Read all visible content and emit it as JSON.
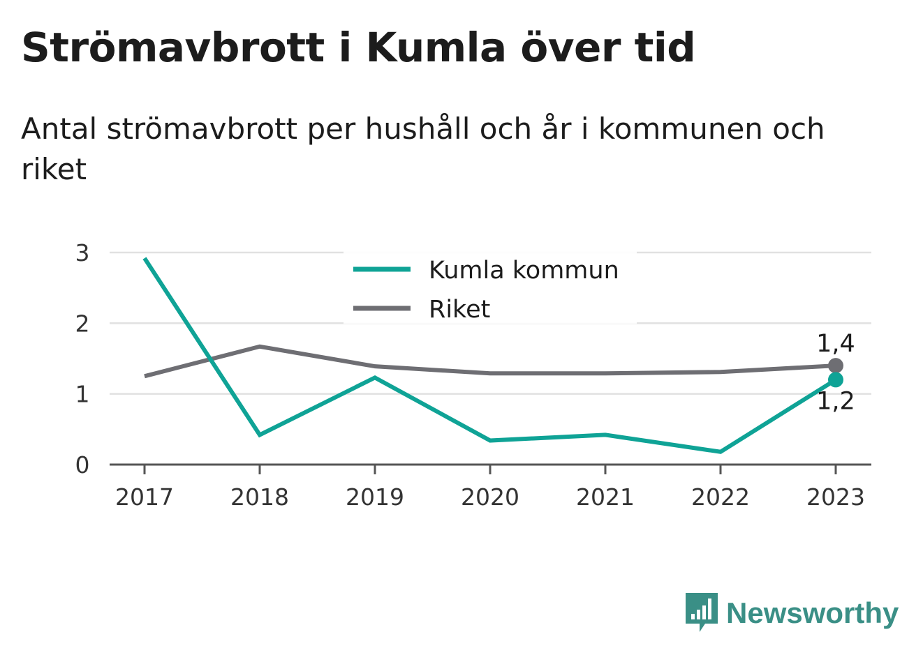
{
  "title": "Strömavbrott i Kumla över tid",
  "subtitle": "Antal strömavbrott per hushåll och år i kommunen och riket",
  "brand": "Newsworthy",
  "colors": {
    "kumla": "#0fa396",
    "riket": "#6e6e73",
    "grid": "#e1e1e1",
    "axis": "#555555",
    "brand": "#3a8f86"
  },
  "chart_data": {
    "type": "line",
    "x": [
      "2017",
      "2018",
      "2019",
      "2020",
      "2021",
      "2022",
      "2023"
    ],
    "ylim": [
      0,
      3
    ],
    "yticks": [
      "0",
      "1",
      "2",
      "3"
    ],
    "grid": true,
    "legend_position": "top-center",
    "series": [
      {
        "name": "Kumla kommun",
        "color": "#0fa396",
        "values": [
          2.92,
          0.42,
          1.23,
          0.34,
          0.42,
          0.18,
          1.2
        ]
      },
      {
        "name": "Riket",
        "color": "#6e6e73",
        "values": [
          1.25,
          1.67,
          1.39,
          1.29,
          1.29,
          1.31,
          1.4
        ]
      }
    ],
    "end_labels": [
      "1,2",
      "1,4"
    ]
  }
}
